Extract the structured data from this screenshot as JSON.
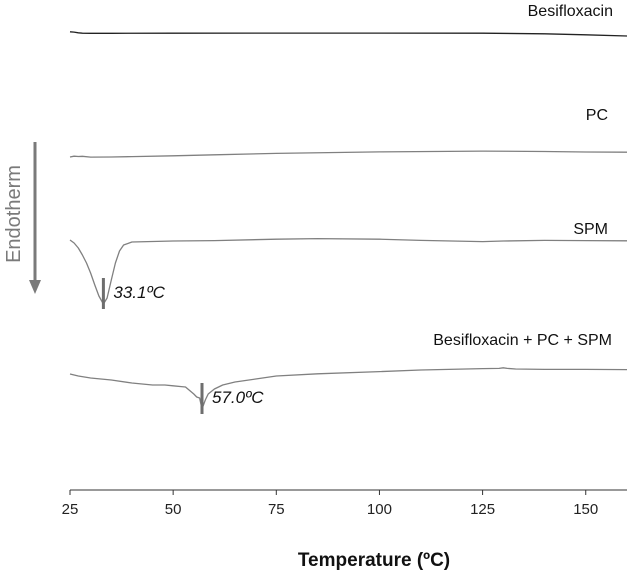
{
  "chart_data": {
    "type": "line",
    "xlabel": "Temperature (ºC)",
    "ylabel": "Endotherm",
    "xlim": [
      25,
      160
    ],
    "xticks": [
      25,
      50,
      75,
      100,
      125,
      150
    ],
    "grid": false,
    "colors": {
      "dark": "#222222",
      "gray": "#808080",
      "marker": "#6e6e6e"
    },
    "series": [
      {
        "name": "Besifloxacin",
        "x": [
          25,
          26,
          27,
          28,
          30,
          35,
          50,
          75,
          100,
          125,
          140,
          150,
          160
        ],
        "y": [
          -0.2,
          0.1,
          0.8,
          1.2,
          1.3,
          1.3,
          1.2,
          1.1,
          1.1,
          1.2,
          1.8,
          2.8,
          4.0
        ]
      },
      {
        "name": "PC",
        "x": [
          25,
          26,
          27,
          28,
          30,
          35,
          40,
          50,
          60,
          75,
          100,
          125,
          140,
          150,
          160
        ],
        "y": [
          12.0,
          11.2,
          11.5,
          11.3,
          12.1,
          12.0,
          11.6,
          10.8,
          9.8,
          8.4,
          6.9,
          6.1,
          6.5,
          7.0,
          7.2
        ]
      },
      {
        "name": "SPM",
        "x": [
          25,
          26,
          27,
          28,
          29,
          30,
          31,
          32,
          33.1,
          34,
          35,
          36,
          37,
          38,
          40,
          50,
          60,
          75,
          85,
          100,
          110,
          125,
          130,
          140,
          150,
          160
        ],
        "y": [
          12.0,
          15.0,
          20.0,
          27.0,
          35.0,
          45.0,
          57.0,
          68.0,
          76.0,
          70.0,
          52.0,
          35.0,
          23.0,
          17.0,
          14.0,
          13.0,
          12.6,
          11.2,
          10.6,
          11.2,
          12.4,
          13.6,
          13.0,
          12.4,
          12.6,
          12.8
        ]
      },
      {
        "name": "Besifloxacin + PC + SPM",
        "x": [
          25,
          27,
          30,
          35,
          40,
          45,
          48,
          50,
          52,
          53,
          55,
          55.7,
          56.4,
          57.0,
          57.8,
          58.5,
          60,
          62,
          65,
          70,
          75,
          85,
          100,
          110,
          125,
          129,
          130,
          131,
          133,
          140,
          150,
          160
        ],
        "y": [
          4.0,
          6.0,
          8.0,
          10.0,
          13.0,
          15.0,
          15.0,
          15.8,
          16.6,
          17.0,
          24.0,
          27.0,
          28.0,
          39.0,
          30.0,
          24.0,
          19.0,
          15.0,
          12.0,
          9.0,
          6.0,
          3.8,
          1.6,
          0.0,
          -1.4,
          -1.6,
          -2.2,
          -1.6,
          -1.0,
          -0.6,
          -0.6,
          -0.4
        ]
      }
    ],
    "annotations": [
      {
        "series": "SPM",
        "x": 33.1,
        "text": "33.1ºC"
      },
      {
        "series": "Besifloxacin + PC + SPM",
        "x": 57.0,
        "text": "57.0ºC"
      }
    ]
  }
}
